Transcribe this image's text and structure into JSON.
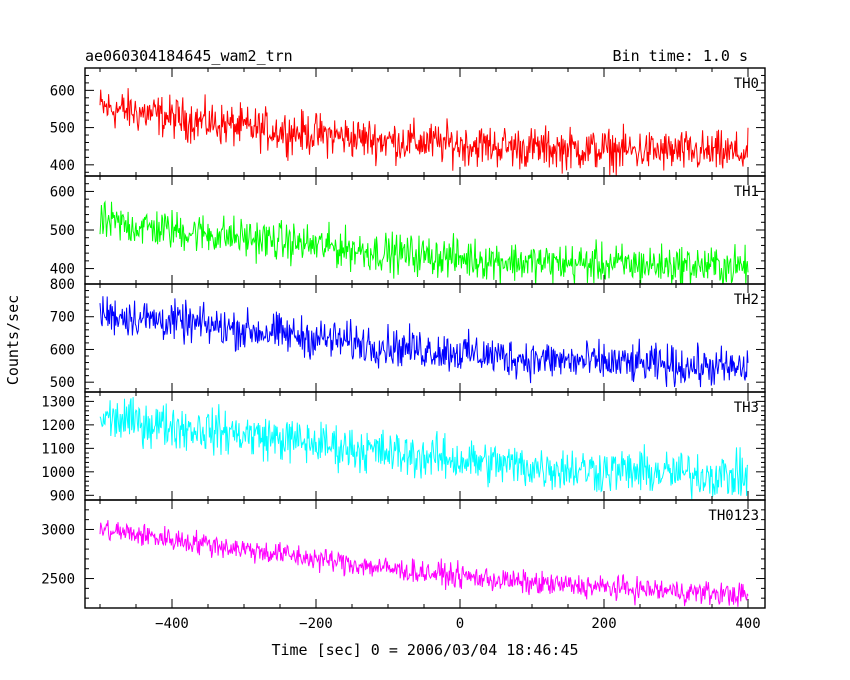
{
  "chart_data": {
    "type": "line",
    "title": "ae060304184645_wam2_trn",
    "bin_label": "Bin time: 1.0 s",
    "xlabel": "Time [sec] 0 = 2006/03/04 18:46:45",
    "ylabel": "Counts/sec",
    "xlim": [
      -510,
      420
    ],
    "x_ticks": [
      -400,
      -200,
      0,
      200,
      400
    ],
    "panels": [
      {
        "name": "TH0",
        "color": "#ff0000",
        "ylim": [
          370,
          660
        ],
        "y_ticks": [
          400,
          500,
          600
        ],
        "trend": [
          {
            "x": -500,
            "y": 555
          },
          {
            "x": -300,
            "y": 500
          },
          {
            "x": -100,
            "y": 465
          },
          {
            "x": 100,
            "y": 445
          },
          {
            "x": 400,
            "y": 430
          }
        ],
        "spread": 65
      },
      {
        "name": "TH1",
        "color": "#00ff00",
        "ylim": [
          360,
          640
        ],
        "y_ticks": [
          400,
          500,
          600
        ],
        "trend": [
          {
            "x": -500,
            "y": 520
          },
          {
            "x": -300,
            "y": 480
          },
          {
            "x": -100,
            "y": 440
          },
          {
            "x": 100,
            "y": 415
          },
          {
            "x": 400,
            "y": 405
          }
        ],
        "spread": 60
      },
      {
        "name": "TH2",
        "color": "#0000ff",
        "ylim": [
          470,
          800
        ],
        "y_ticks": [
          500,
          600,
          700,
          800
        ],
        "trend": [
          {
            "x": -500,
            "y": 710
          },
          {
            "x": -300,
            "y": 660
          },
          {
            "x": -100,
            "y": 610
          },
          {
            "x": 100,
            "y": 570
          },
          {
            "x": 400,
            "y": 540
          }
        ],
        "spread": 70
      },
      {
        "name": "TH3",
        "color": "#00ffff",
        "ylim": [
          880,
          1340
        ],
        "y_ticks": [
          900,
          1000,
          1100,
          1200,
          1300
        ],
        "trend": [
          {
            "x": -500,
            "y": 1230
          },
          {
            "x": -300,
            "y": 1160
          },
          {
            "x": -100,
            "y": 1080
          },
          {
            "x": 100,
            "y": 1020
          },
          {
            "x": 400,
            "y": 980
          }
        ],
        "spread": 110
      },
      {
        "name": "TH0123",
        "color": "#ff00ff",
        "ylim": [
          2200,
          3300
        ],
        "y_ticks": [
          2500,
          3000
        ],
        "trend": [
          {
            "x": -500,
            "y": 3000
          },
          {
            "x": -300,
            "y": 2800
          },
          {
            "x": -100,
            "y": 2600
          },
          {
            "x": 100,
            "y": 2450
          },
          {
            "x": 400,
            "y": 2330
          }
        ],
        "spread": 140
      }
    ]
  }
}
